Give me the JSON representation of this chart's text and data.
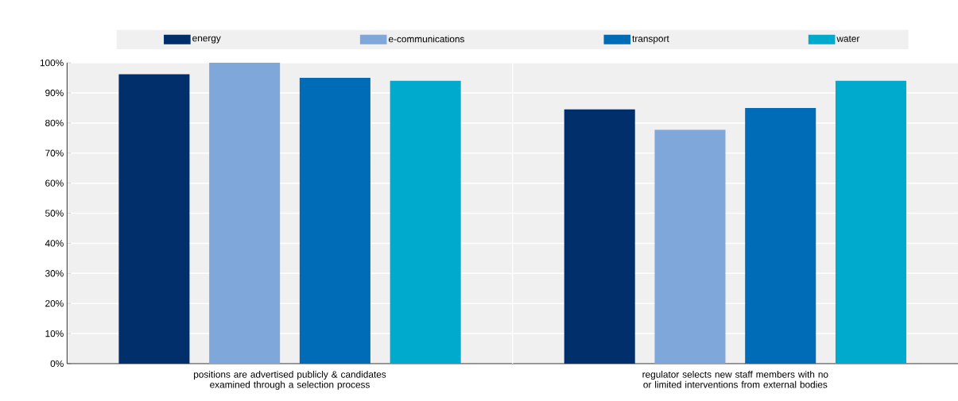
{
  "chart_data": {
    "type": "bar",
    "categories": [
      "positions are advertised publicly & candidates examined through a selection process",
      "regulator selects new staff members with no or limited interventions from external bodies"
    ],
    "series": [
      {
        "name": "energy",
        "color": "#002f6c",
        "values": [
          96.2,
          84.5
        ]
      },
      {
        "name": "e-communications",
        "color": "#7fa7d9",
        "values": [
          100,
          77.7
        ]
      },
      {
        "name": "transport",
        "color": "#006bb6",
        "values": [
          95.0,
          85.0
        ]
      },
      {
        "name": "water",
        "color": "#00aacd",
        "values": [
          94.0,
          94.0
        ]
      }
    ],
    "ylim": [
      0,
      100
    ],
    "yticks": [
      {
        "value": 0,
        "label": "0%"
      },
      {
        "value": 10,
        "label": "10%"
      },
      {
        "value": 20,
        "label": "20%"
      },
      {
        "value": 30,
        "label": "30%"
      },
      {
        "value": 40,
        "label": "40%"
      },
      {
        "value": 50,
        "label": "50%"
      },
      {
        "value": 60,
        "label": "60%"
      },
      {
        "value": 70,
        "label": "70%"
      },
      {
        "value": 80,
        "label": "80%"
      },
      {
        "value": 90,
        "label": "90%"
      },
      {
        "value": 100,
        "label": "100%"
      }
    ],
    "grid": "y",
    "legend": "top"
  }
}
